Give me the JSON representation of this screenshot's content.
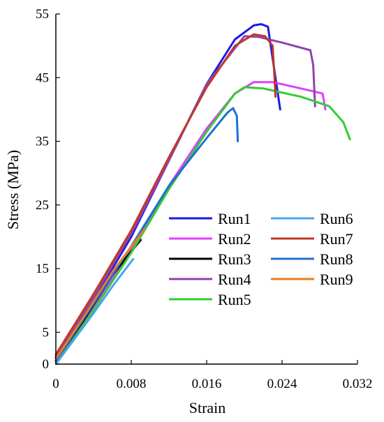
{
  "chart_data": {
    "type": "line",
    "title": "",
    "xlabel": "Strain",
    "ylabel": "Stress (MPa)",
    "xlim": [
      0,
      0.032
    ],
    "ylim": [
      0,
      55
    ],
    "x_ticks": [
      "0",
      "0.008",
      "0.016",
      "0.024",
      "0.032"
    ],
    "y_ticks": [
      "0",
      "5",
      "15",
      "25",
      "35",
      "45",
      "55"
    ],
    "x_tick_values": [
      0,
      0.008,
      0.016,
      0.024,
      0.032
    ],
    "y_tick_values": [
      0,
      5,
      15,
      25,
      35,
      45,
      55
    ],
    "grid": false,
    "legend_position": "center-right",
    "series": [
      {
        "name": "Run1",
        "color": "#1a1ae6",
        "points": [
          [
            0,
            1
          ],
          [
            0.004,
            10
          ],
          [
            0.008,
            20
          ],
          [
            0.012,
            32
          ],
          [
            0.016,
            44
          ],
          [
            0.019,
            51
          ],
          [
            0.021,
            53.2
          ],
          [
            0.0218,
            53.4
          ],
          [
            0.0225,
            53
          ],
          [
            0.0232,
            46
          ],
          [
            0.0238,
            40
          ]
        ]
      },
      {
        "name": "Run2",
        "color": "#e040fb",
        "points": [
          [
            0,
            0.5
          ],
          [
            0.004,
            9
          ],
          [
            0.008,
            18
          ],
          [
            0.012,
            28
          ],
          [
            0.016,
            37
          ],
          [
            0.019,
            42.5
          ],
          [
            0.021,
            44.3
          ],
          [
            0.023,
            44.3
          ],
          [
            0.026,
            43.3
          ],
          [
            0.0283,
            42.5
          ],
          [
            0.0286,
            40
          ]
        ]
      },
      {
        "name": "Run3",
        "color": "#000000",
        "points": [
          [
            0,
            0.5
          ],
          [
            0.003,
            7
          ],
          [
            0.006,
            14
          ],
          [
            0.009,
            19.5
          ]
        ]
      },
      {
        "name": "Run4",
        "color": "#8e44ad",
        "points": [
          [
            0,
            1.2
          ],
          [
            0.004,
            10.5
          ],
          [
            0.008,
            20.5
          ],
          [
            0.012,
            32
          ],
          [
            0.016,
            44
          ],
          [
            0.02,
            51.5
          ],
          [
            0.0215,
            51.4
          ],
          [
            0.024,
            50.5
          ],
          [
            0.027,
            49.3
          ],
          [
            0.0273,
            47
          ],
          [
            0.0275,
            40.5
          ]
        ]
      },
      {
        "name": "Run5",
        "color": "#33cc33",
        "points": [
          [
            0,
            0
          ],
          [
            0.004,
            8.5
          ],
          [
            0.008,
            17.5
          ],
          [
            0.012,
            27.5
          ],
          [
            0.016,
            36.5
          ],
          [
            0.019,
            42.5
          ],
          [
            0.02,
            43.5
          ],
          [
            0.022,
            43.3
          ],
          [
            0.026,
            42
          ],
          [
            0.029,
            40.5
          ],
          [
            0.0305,
            38
          ],
          [
            0.0312,
            35.3
          ]
        ]
      },
      {
        "name": "Run6",
        "color": "#4aa3ef",
        "points": [
          [
            0,
            0
          ],
          [
            0.002,
            4
          ],
          [
            0.004,
            8
          ],
          [
            0.006,
            12.2
          ],
          [
            0.0082,
            16.5
          ]
        ]
      },
      {
        "name": "Run7",
        "color": "#c0392b",
        "points": [
          [
            0,
            1.5
          ],
          [
            0.004,
            11
          ],
          [
            0.008,
            21
          ],
          [
            0.012,
            32.5
          ],
          [
            0.016,
            43.5
          ],
          [
            0.019,
            50
          ],
          [
            0.021,
            51.8
          ],
          [
            0.0222,
            51.5
          ],
          [
            0.023,
            50
          ],
          [
            0.0232,
            45
          ],
          [
            0.0233,
            42
          ]
        ]
      },
      {
        "name": "Run8",
        "color": "#1f6fd1",
        "points": [
          [
            0,
            0.5
          ],
          [
            0.004,
            9.5
          ],
          [
            0.008,
            18.5
          ],
          [
            0.012,
            28
          ],
          [
            0.016,
            35.5
          ],
          [
            0.0182,
            39.5
          ],
          [
            0.0188,
            40.2
          ],
          [
            0.0192,
            39
          ],
          [
            0.0193,
            35
          ]
        ]
      },
      {
        "name": "Run9",
        "color": "#e67e22",
        "points": [
          [
            0,
            0.8
          ],
          [
            0.003,
            7.5
          ],
          [
            0.006,
            14.5
          ],
          [
            0.0094,
            21.2
          ]
        ]
      }
    ]
  }
}
